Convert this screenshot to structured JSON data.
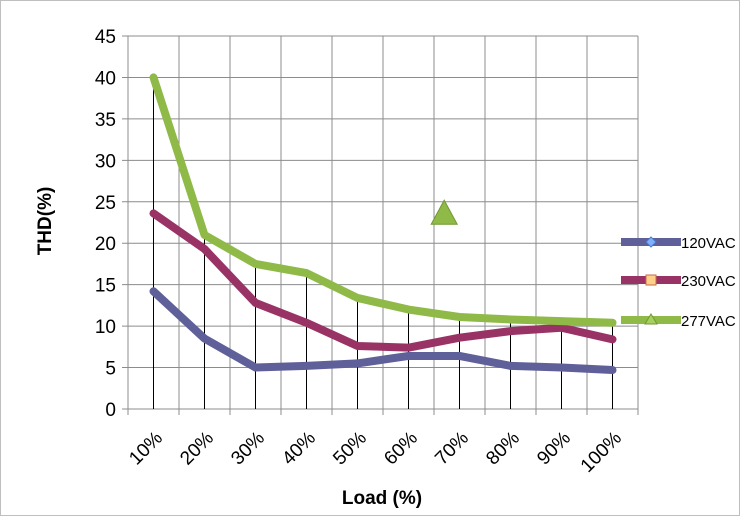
{
  "chart_data": {
    "type": "line",
    "categories": [
      "10%",
      "20%",
      "30%",
      "40%",
      "50%",
      "60%",
      "70%",
      "80%",
      "90%",
      "100%"
    ],
    "series": [
      {
        "name": "120VAC",
        "values": [
          14.2,
          8.5,
          5.0,
          5.2,
          5.5,
          6.4,
          6.4,
          5.2,
          5.0,
          4.7
        ],
        "color": "#5f5f9a",
        "marker": "diamond"
      },
      {
        "name": "230VAC",
        "values": [
          23.6,
          19.3,
          12.8,
          10.4,
          7.6,
          7.4,
          8.6,
          9.4,
          9.8,
          8.4
        ],
        "color": "#993366",
        "marker": "square"
      },
      {
        "name": "277VAC",
        "values": [
          40.0,
          21.0,
          17.5,
          16.4,
          13.4,
          12.0,
          11.1,
          10.8,
          10.6,
          10.4
        ],
        "color": "#8fba48",
        "marker": "triangle"
      }
    ],
    "xlabel": "Load (%)",
    "ylabel": "THD(%)",
    "ylim": [
      0,
      45
    ],
    "yticks": [
      0,
      5,
      10,
      15,
      20,
      25,
      30,
      35,
      40,
      45
    ],
    "grid": true,
    "legend": "right",
    "stray_marker": {
      "series": "277VAC",
      "x": 6.7,
      "y": 23.5
    }
  }
}
